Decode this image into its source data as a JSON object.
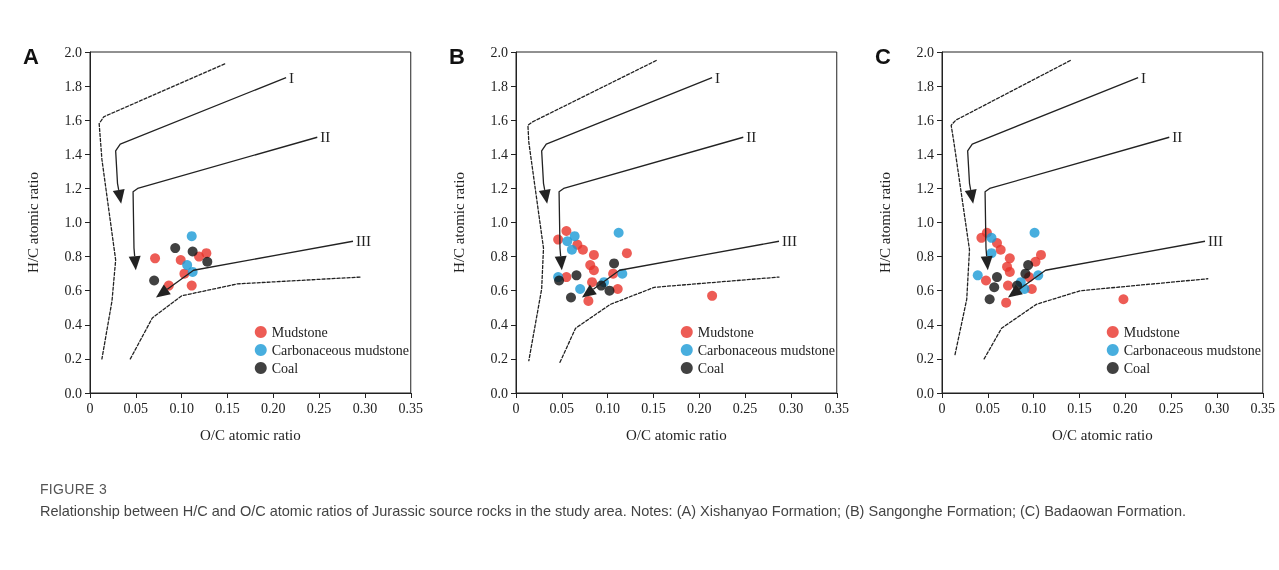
{
  "chart_data": [
    {
      "type": "scatter",
      "title": "A",
      "xlabel": "O/C atomic ratio",
      "ylabel": "H/C atomic ratio",
      "xlim": [
        0,
        0.35
      ],
      "ylim": [
        0,
        2
      ],
      "xticks": [
        0,
        0.05,
        {
          "value": 0.1,
          "label": "0.10"
        },
        0.15,
        {
          "value": 0.2,
          "label": "0.20"
        },
        0.25,
        {
          "value": 0.3,
          "label": "0.30"
        },
        0.35
      ],
      "yticks": [
        {
          "value": 0,
          "label": "0.0"
        },
        0.2,
        0.4,
        0.6,
        0.8,
        {
          "value": 1,
          "label": "1.0"
        },
        1.2,
        1.4,
        1.6,
        1.8,
        {
          "value": 2,
          "label": "2.0"
        }
      ],
      "legend": "bottom right",
      "marker": "circle",
      "annotations": [
        "FIGURE 3",
        "Relationship between H/C and O/C atomic ratios of Jurassic source rocks in the study area. Notes: (A) Xishanyao Formation; (B) Sangonghe Formation; (C) Badaowan Formation.",
        "I",
        "II",
        "III"
      ],
      "series": [
        {
          "name": "Mudstone",
          "color": "#e8332a",
          "x": [
            0.071,
            0.099,
            0.103,
            0.086,
            0.111,
            0.119,
            0.127
          ],
          "values": [
            0.79,
            0.78,
            0.7,
            0.63,
            0.63,
            0.8,
            0.82
          ]
        },
        {
          "name": "Carbonaceous mudstone",
          "color": "#1a9ad6",
          "x": [
            0.111,
            0.106,
            0.112
          ],
          "values": [
            0.92,
            0.75,
            0.71
          ]
        },
        {
          "name": "Coal",
          "color": "#111111",
          "x": [
            0.093,
            0.112,
            0.128,
            0.07
          ],
          "values": [
            0.85,
            0.83,
            0.77,
            0.66
          ]
        },
        {
          "type": "line",
          "color": "#222222",
          "marker": "none",
          "line_style": "dashed",
          "x": [
            0.147,
            0.015,
            0.01,
            0.013,
            0.028,
            0.024,
            0.013
          ],
          "values": [
            1.93,
            1.62,
            1.58,
            1.37,
            0.78,
            0.54,
            0.2
          ]
        },
        {
          "type": "line",
          "color": "#222222",
          "marker": "none",
          "line_style": "dashed",
          "x": [
            0.044,
            0.068,
            0.1,
            0.161,
            0.295
          ],
          "values": [
            0.2,
            0.44,
            0.57,
            0.64,
            0.68
          ]
        }
      ]
    },
    {
      "type": "scatter",
      "title": "B",
      "xlabel": "O/C atomic ratio",
      "ylabel": "H/C atomic ratio",
      "xlim": [
        0,
        0.35
      ],
      "ylim": [
        0,
        2
      ],
      "xticks": [
        0,
        0.05,
        {
          "value": 0.1,
          "label": "0.10"
        },
        0.15,
        {
          "value": 0.2,
          "label": "0.20"
        },
        0.25,
        {
          "value": 0.3,
          "label": "0.30"
        },
        0.35
      ],
      "yticks": [
        {
          "value": 0,
          "label": "0.0"
        },
        0.2,
        0.4,
        0.6,
        0.8,
        {
          "value": 1,
          "label": "1.0"
        },
        1.2,
        1.4,
        1.6,
        1.8,
        {
          "value": 2,
          "label": "2.0"
        }
      ],
      "legend": "bottom right",
      "marker": "circle",
      "annotations": [
        "I",
        "II",
        "III"
      ],
      "series": [
        {
          "name": "Mudstone",
          "color": "#e8332a",
          "x": [
            0.046,
            0.055,
            0.067,
            0.073,
            0.085,
            0.081,
            0.085,
            0.121,
            0.055,
            0.106,
            0.111,
            0.083,
            0.079,
            0.214
          ],
          "values": [
            0.9,
            0.95,
            0.87,
            0.84,
            0.81,
            0.75,
            0.72,
            0.82,
            0.68,
            0.7,
            0.61,
            0.65,
            0.54,
            0.57
          ]
        },
        {
          "name": "Carbonaceous mudstone",
          "color": "#1a9ad6",
          "x": [
            0.056,
            0.064,
            0.061,
            0.112,
            0.116,
            0.046,
            0.07,
            0.096
          ],
          "values": [
            0.89,
            0.92,
            0.84,
            0.94,
            0.7,
            0.68,
            0.61,
            0.65
          ]
        },
        {
          "name": "Coal",
          "color": "#111111",
          "x": [
            0.047,
            0.066,
            0.06,
            0.093,
            0.102,
            0.107
          ],
          "values": [
            0.66,
            0.69,
            0.56,
            0.63,
            0.6,
            0.76
          ]
        },
        {
          "type": "line",
          "color": "#222222",
          "marker": "none",
          "line_style": "dashed",
          "x": [
            0.153,
            0.018,
            0.013,
            0.014,
            0.03,
            0.028,
            0.014
          ],
          "values": [
            1.95,
            1.59,
            1.57,
            1.47,
            0.85,
            0.61,
            0.19
          ]
        },
        {
          "type": "line",
          "color": "#222222",
          "marker": "none",
          "line_style": "dashed",
          "x": [
            0.048,
            0.065,
            0.103,
            0.151,
            0.287
          ],
          "values": [
            0.18,
            0.38,
            0.52,
            0.62,
            0.68
          ]
        }
      ]
    },
    {
      "type": "scatter",
      "title": "C",
      "xlabel": "O/C atomic ratio",
      "ylabel": "H/C atomic ratio",
      "xlim": [
        0,
        0.35
      ],
      "ylim": [
        0,
        2
      ],
      "xticks": [
        0,
        0.05,
        {
          "value": 0.1,
          "label": "0.10"
        },
        0.15,
        {
          "value": 0.2,
          "label": "0.20"
        },
        0.25,
        {
          "value": 0.3,
          "label": "0.30"
        },
        0.35
      ],
      "yticks": [
        {
          "value": 0,
          "label": "0.0"
        },
        0.2,
        0.4,
        0.6,
        0.8,
        {
          "value": 1,
          "label": "1.0"
        },
        1.2,
        1.4,
        1.6,
        1.8,
        {
          "value": 2,
          "label": "2.0"
        }
      ],
      "legend": "bottom right",
      "marker": "circle",
      "annotations": [
        "I",
        "II",
        "III"
      ],
      "series": [
        {
          "name": "Mudstone",
          "color": "#e8332a",
          "x": [
            0.043,
            0.049,
            0.06,
            0.064,
            0.074,
            0.071,
            0.074,
            0.108,
            0.102,
            0.048,
            0.095,
            0.098,
            0.072,
            0.07,
            0.198
          ],
          "values": [
            0.91,
            0.94,
            0.88,
            0.84,
            0.79,
            0.74,
            0.71,
            0.81,
            0.77,
            0.66,
            0.68,
            0.61,
            0.63,
            0.53,
            0.55
          ]
        },
        {
          "name": "Carbonaceous mudstone",
          "color": "#1a9ad6",
          "x": [
            0.054,
            0.054,
            0.101,
            0.105,
            0.039,
            0.086,
            0.09
          ],
          "values": [
            0.91,
            0.82,
            0.94,
            0.69,
            0.69,
            0.65,
            0.61
          ]
        },
        {
          "name": "Coal",
          "color": "#111111",
          "x": [
            0.094,
            0.091,
            0.06,
            0.057,
            0.052,
            0.082
          ],
          "values": [
            0.75,
            0.7,
            0.68,
            0.62,
            0.55,
            0.63
          ]
        },
        {
          "type": "line",
          "color": "#222222",
          "marker": "none",
          "line_style": "dashed",
          "x": [
            0.14,
            0.015,
            0.01,
            0.013,
            0.03,
            0.027,
            0.014
          ],
          "values": [
            1.95,
            1.6,
            1.57,
            1.47,
            0.84,
            0.55,
            0.22
          ]
        },
        {
          "type": "line",
          "color": "#222222",
          "marker": "none",
          "line_style": "dashed",
          "x": [
            0.046,
            0.065,
            0.103,
            0.151,
            0.29
          ],
          "values": [
            0.2,
            0.38,
            0.52,
            0.6,
            0.67
          ]
        }
      ]
    }
  ]
}
